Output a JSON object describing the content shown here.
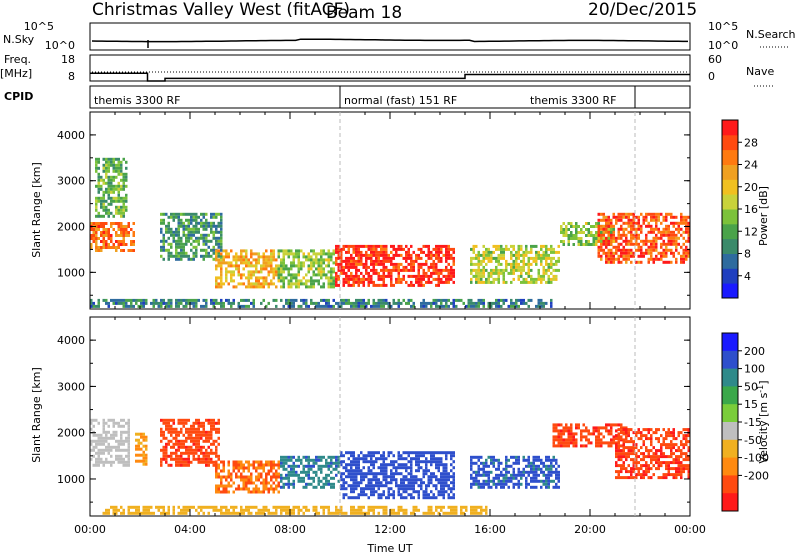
{
  "header": {
    "title": "Christmas Valley West (fitACF)",
    "beam": "Beam 18",
    "date": "20/Dec/2015"
  },
  "scan_panels": {
    "nsky_label": "N.Sky",
    "nsearch_label": "N.Search",
    "nsky_ticks": [
      "10^5",
      "10^0"
    ],
    "nsearch_ticks": [
      "10^5",
      "10^0"
    ],
    "freq_label": "Freq.",
    "freq_unit": "[MHz]",
    "freq_ticks": [
      "18",
      "8"
    ],
    "nave_label": "Nave",
    "nave_ticks": [
      "60",
      "0"
    ],
    "cpid_label": "CPID",
    "cpid_segments": [
      {
        "label": "themis 3300 RF",
        "start_hour": 0.0,
        "end_hour": 10.0
      },
      {
        "label": "normal (fast) 151 RF",
        "start_hour": 10.0,
        "end_hour": 21.8
      },
      {
        "label": "themis 3300 RF",
        "start_hour": 21.8,
        "end_hour": 24.0
      }
    ],
    "freq_steps": [
      {
        "start_hour": 0.0,
        "end_hour": 2.3,
        "mhz": 11
      },
      {
        "start_hour": 2.3,
        "end_hour": 3.0,
        "mhz": 8
      },
      {
        "start_hour": 3.0,
        "end_hour": 15.0,
        "mhz": 9
      },
      {
        "start_hour": 15.0,
        "end_hour": 24.0,
        "mhz": 10.5
      }
    ]
  },
  "chart_data": [
    {
      "type": "heatmap",
      "name": "power",
      "ylabel": "Slant Range [km]",
      "xlabel": "",
      "ylim": [
        200,
        4500
      ],
      "xlim": [
        0,
        24
      ],
      "yticks": [
        "1000",
        "2000",
        "3000",
        "4000"
      ],
      "xticks": [
        "00:00",
        "04:00",
        "08:00",
        "12:00",
        "16:00",
        "20:00",
        "00:00"
      ],
      "colorbar": {
        "label": "Power [dB]",
        "ticks": [
          "4",
          "8",
          "12",
          "16",
          "20",
          "24",
          "28"
        ],
        "range": [
          0,
          30
        ],
        "colors": [
          "#1a1aff",
          "#1f3fbf",
          "#2e6b9e",
          "#3a8a6a",
          "#4aa34a",
          "#7cc23a",
          "#c8d23a",
          "#f0c020",
          "#f0a020",
          "#ff7a10",
          "#ff4a10",
          "#ff1a1a"
        ]
      },
      "echo_regions": [
        {
          "t0": 0.0,
          "t1": 1.8,
          "r0": 1500,
          "r1": 2100,
          "level": 24
        },
        {
          "t0": 0.2,
          "t1": 1.5,
          "r0": 2200,
          "r1": 3500,
          "level": 12
        },
        {
          "t0": 2.8,
          "t1": 5.3,
          "r0": 1300,
          "r1": 2300,
          "level": 10
        },
        {
          "t0": 5.0,
          "t1": 7.5,
          "r0": 700,
          "r1": 1500,
          "level": 20
        },
        {
          "t0": 7.5,
          "t1": 9.8,
          "r0": 700,
          "r1": 1500,
          "level": 14
        },
        {
          "t0": 9.8,
          "t1": 14.6,
          "r0": 700,
          "r1": 1600,
          "level": 28
        },
        {
          "t0": 15.2,
          "t1": 18.8,
          "r0": 800,
          "r1": 1600,
          "level": 16
        },
        {
          "t0": 18.8,
          "t1": 21.0,
          "r0": 1600,
          "r1": 2100,
          "level": 14
        },
        {
          "t0": 20.3,
          "t1": 24.0,
          "r0": 1200,
          "r1": 2300,
          "level": 26
        },
        {
          "t0": 0.0,
          "t1": 18.5,
          "r0": 250,
          "r1": 420,
          "level": 8
        }
      ]
    },
    {
      "type": "heatmap",
      "name": "velocity",
      "ylabel": "Slant Range [km]",
      "xlabel": "Time UT",
      "ylim": [
        200,
        4500
      ],
      "xlim": [
        0,
        24
      ],
      "yticks": [
        "1000",
        "2000",
        "3000",
        "4000"
      ],
      "xticks": [
        "00:00",
        "04:00",
        "08:00",
        "12:00",
        "16:00",
        "20:00",
        "00:00"
      ],
      "colorbar": {
        "label": "Velocity [m s",
        "label_sup": "-1",
        "label_end": "]",
        "ticks": [
          "200",
          "100",
          "50",
          "15",
          "-15",
          "-50",
          "-100",
          "-200"
        ],
        "colors": [
          "#1a1aff",
          "#2e4fcc",
          "#2f8a8a",
          "#3aa84a",
          "#7acd3a",
          "#bfbfbf",
          "#f0b020",
          "#ff8a10",
          "#ff4a10",
          "#ff1a1a"
        ]
      },
      "echo_regions": [
        {
          "t0": 0.0,
          "t1": 1.6,
          "r0": 1300,
          "r1": 2300,
          "level": 0
        },
        {
          "t0": 1.8,
          "t1": 2.3,
          "r0": 1300,
          "r1": 2000,
          "level": -60
        },
        {
          "t0": 2.8,
          "t1": 5.2,
          "r0": 1300,
          "r1": 2300,
          "level": -180
        },
        {
          "t0": 5.0,
          "t1": 7.6,
          "r0": 700,
          "r1": 1400,
          "level": -100
        },
        {
          "t0": 7.6,
          "t1": 10.0,
          "r0": 800,
          "r1": 1500,
          "level": 80
        },
        {
          "t0": 10.0,
          "t1": 14.6,
          "r0": 600,
          "r1": 1600,
          "level": 150
        },
        {
          "t0": 15.2,
          "t1": 18.8,
          "r0": 800,
          "r1": 1500,
          "level": 120
        },
        {
          "t0": 18.5,
          "t1": 21.5,
          "r0": 1700,
          "r1": 2200,
          "level": -180
        },
        {
          "t0": 21.0,
          "t1": 24.0,
          "r0": 1000,
          "r1": 2100,
          "level": -190
        },
        {
          "t0": 0.5,
          "t1": 16.0,
          "r0": 250,
          "r1": 420,
          "level": -40
        }
      ]
    }
  ]
}
